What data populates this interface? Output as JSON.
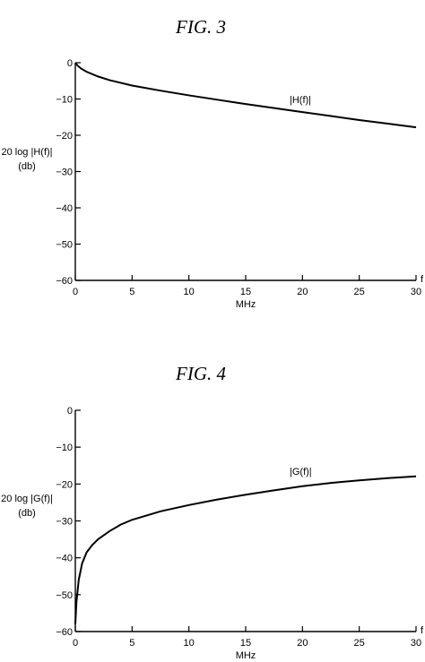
{
  "chart_data": [
    {
      "type": "line",
      "title": "FIG. 3",
      "xlabel": "MHz",
      "x_axis_symbol": "f",
      "ylabel_lines": [
        "20 log |H(f)|",
        "(db)"
      ],
      "xlim": [
        0,
        30
      ],
      "ylim": [
        -60,
        0
      ],
      "x_ticks": [
        0,
        5,
        10,
        15,
        20,
        25,
        30
      ],
      "y_ticks": [
        0,
        -10,
        -20,
        -30,
        -40,
        -50,
        -60
      ],
      "grid": false,
      "series": [
        {
          "name": "|H(f)|",
          "x": [
            0,
            0.2,
            0.5,
            1,
            2,
            3,
            5,
            7.5,
            10,
            12.5,
            15,
            17.5,
            20,
            22.5,
            25,
            27.5,
            30
          ],
          "y": [
            0,
            -0.8,
            -1.6,
            -2.5,
            -3.8,
            -4.8,
            -6.3,
            -7.7,
            -9.0,
            -10.2,
            -11.4,
            -12.5,
            -13.6,
            -14.7,
            -15.8,
            -16.8,
            -17.8
          ]
        }
      ]
    },
    {
      "type": "line",
      "title": "FIG. 4",
      "xlabel": "MHz",
      "x_axis_symbol": "f",
      "ylabel_lines": [
        "20 log |G(f)|",
        "(db)"
      ],
      "xlim": [
        0,
        30
      ],
      "ylim": [
        -60,
        0
      ],
      "x_ticks": [
        0,
        5,
        10,
        15,
        20,
        25,
        30
      ],
      "y_ticks": [
        0,
        -10,
        -20,
        -30,
        -40,
        -50,
        -60
      ],
      "grid": false,
      "series": [
        {
          "name": "|G(f)|",
          "x": [
            0,
            0.1,
            0.3,
            0.6,
            1,
            1.5,
            2,
            3,
            4,
            5,
            7.5,
            10,
            12.5,
            15,
            17.5,
            20,
            22.5,
            25,
            27.5,
            30
          ],
          "y": [
            -58,
            -52,
            -46,
            -41.5,
            -38.5,
            -36.5,
            -35,
            -32.8,
            -31,
            -29.7,
            -27.4,
            -25.7,
            -24.2,
            -22.9,
            -21.7,
            -20.6,
            -19.7,
            -19.0,
            -18.4,
            -17.9
          ]
        }
      ]
    }
  ]
}
